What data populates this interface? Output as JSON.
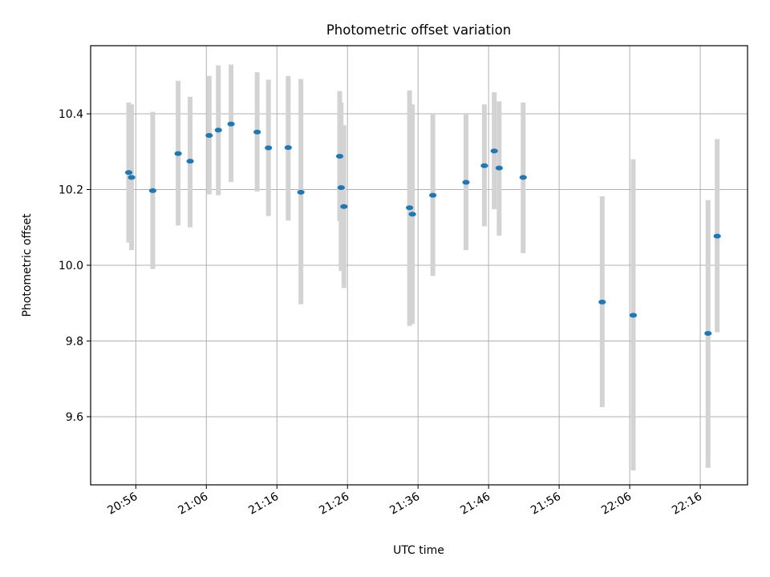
{
  "chart_data": {
    "type": "scatter",
    "title": "Photometric offset variation",
    "xlabel": "UTC time",
    "ylabel": "Photometric offset",
    "x_is_time": true,
    "x_ticks": [
      "20:56",
      "21:06",
      "21:16",
      "21:26",
      "21:36",
      "21:46",
      "21:56",
      "22:06",
      "22:16"
    ],
    "xlim": [
      "20:49.6",
      "22:22.7"
    ],
    "y_ticks": [
      "9.6",
      "9.8",
      "10.0",
      "10.2",
      "10.4"
    ],
    "ylim": [
      9.42,
      10.58
    ],
    "grid": true,
    "point_color": "#1f77b4",
    "errorbar_color": "#d3d3d3",
    "series": [
      {
        "points": [
          {
            "x": "20:55.0",
            "y": 10.245,
            "ymin": 10.06,
            "ymax": 10.43
          },
          {
            "x": "20:55.4",
            "y": 10.232,
            "ymin": 10.04,
            "ymax": 10.425
          },
          {
            "x": "20:58.4",
            "y": 10.197,
            "ymin": 9.99,
            "ymax": 10.405
          },
          {
            "x": "21:02.0",
            "y": 10.295,
            "ymin": 10.105,
            "ymax": 10.487
          },
          {
            "x": "21:03.7",
            "y": 10.275,
            "ymin": 10.1,
            "ymax": 10.445
          },
          {
            "x": "21:06.4",
            "y": 10.343,
            "ymin": 10.187,
            "ymax": 10.5
          },
          {
            "x": "21:07.7",
            "y": 10.357,
            "ymin": 10.185,
            "ymax": 10.528
          },
          {
            "x": "21:09.5",
            "y": 10.373,
            "ymin": 10.22,
            "ymax": 10.53
          },
          {
            "x": "21:13.2",
            "y": 10.352,
            "ymin": 10.195,
            "ymax": 10.51
          },
          {
            "x": "21:14.8",
            "y": 10.31,
            "ymin": 10.13,
            "ymax": 10.49
          },
          {
            "x": "21:17.6",
            "y": 10.311,
            "ymin": 10.118,
            "ymax": 10.5
          },
          {
            "x": "21:19.4",
            "y": 10.193,
            "ymin": 9.897,
            "ymax": 10.492
          },
          {
            "x": "21:24.9",
            "y": 10.288,
            "ymin": 10.117,
            "ymax": 10.46
          },
          {
            "x": "21:25.1",
            "y": 10.205,
            "ymin": 9.985,
            "ymax": 10.43
          },
          {
            "x": "21:25.5",
            "y": 10.155,
            "ymin": 9.94,
            "ymax": 10.37
          },
          {
            "x": "21:34.8",
            "y": 10.152,
            "ymin": 9.84,
            "ymax": 10.462
          },
          {
            "x": "21:35.2",
            "y": 10.135,
            "ymin": 9.845,
            "ymax": 10.425
          },
          {
            "x": "21:38.1",
            "y": 10.185,
            "ymin": 9.972,
            "ymax": 10.4
          },
          {
            "x": "21:42.8",
            "y": 10.219,
            "ymin": 10.04,
            "ymax": 10.4
          },
          {
            "x": "21:45.4",
            "y": 10.263,
            "ymin": 10.103,
            "ymax": 10.425
          },
          {
            "x": "21:46.8",
            "y": 10.302,
            "ymin": 10.148,
            "ymax": 10.457
          },
          {
            "x": "21:47.5",
            "y": 10.257,
            "ymin": 10.078,
            "ymax": 10.433
          },
          {
            "x": "21:50.9",
            "y": 10.232,
            "ymin": 10.032,
            "ymax": 10.43
          },
          {
            "x": "22:02.1",
            "y": 9.903,
            "ymin": 9.625,
            "ymax": 10.182
          },
          {
            "x": "22:06.5",
            "y": 9.868,
            "ymin": 9.458,
            "ymax": 10.28
          },
          {
            "x": "22:17.1",
            "y": 9.82,
            "ymin": 9.465,
            "ymax": 10.172
          },
          {
            "x": "22:18.4",
            "y": 10.077,
            "ymin": 9.823,
            "ymax": 10.333
          }
        ]
      }
    ]
  }
}
